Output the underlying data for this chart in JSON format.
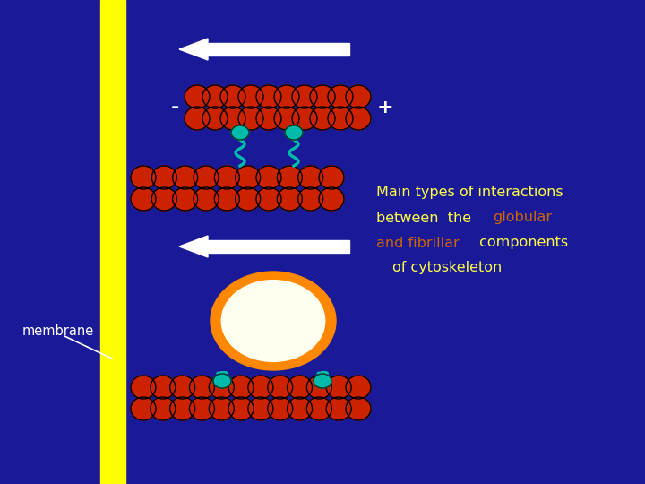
{
  "bg_color": "#1a1a99",
  "membrane_color": "#ffff00",
  "arrow_color": "white",
  "minus_text": "-",
  "plus_text": "+",
  "sign_color": "white",
  "text_line1": "Main types of interactions",
  "text_line2_white": "between  the  ",
  "text_line2_orange": "globular",
  "text_line3_orange": "and fibrillar",
  "text_line3_white": " components",
  "text_line4": "  of cytoskeleton",
  "text_color_white": "#ffff44",
  "text_color_orange": "#cc6600",
  "membrane_label": "membrane",
  "globule_color": "#cc2200",
  "globule_outline": "#000000",
  "linker_color": "#00bbaa",
  "connector_color": "#00bbaa",
  "connector_outline": "#003322",
  "oval_outer_color": "#ff8800",
  "oval_inner_color": "#fffff0"
}
